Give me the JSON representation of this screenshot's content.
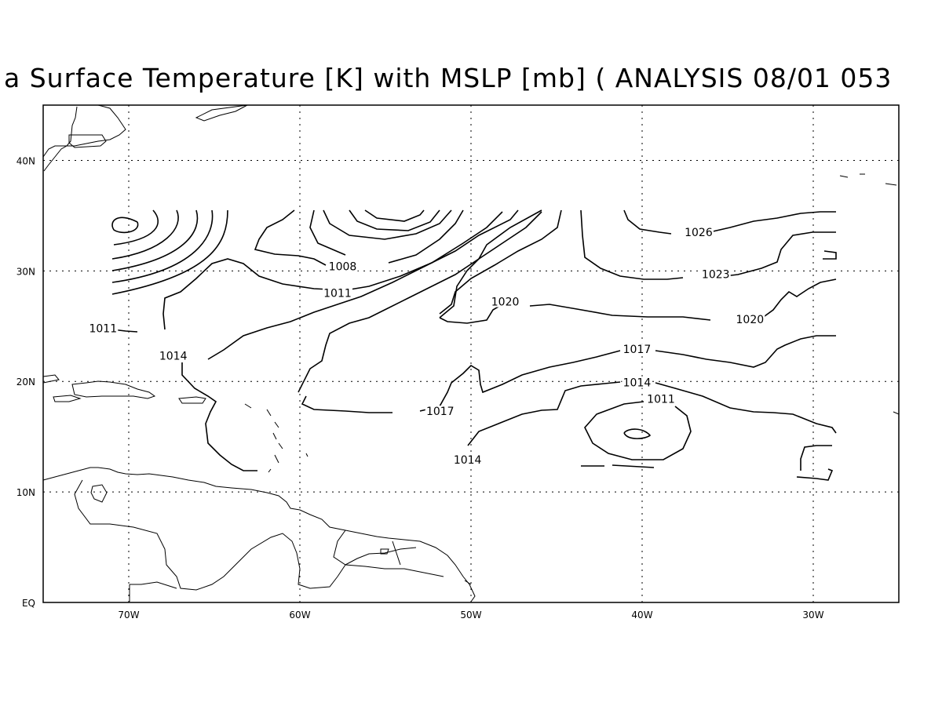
{
  "title": "a Surface Temperature [K] with MSLP [mb] ( ANALYSIS 08/01 053",
  "map": {
    "lon_range": [
      -75,
      -25
    ],
    "lat_range": [
      0,
      45
    ],
    "lat_ticks": [
      {
        "value": 0,
        "label": "EQ"
      },
      {
        "value": 10,
        "label": "10N"
      },
      {
        "value": 20,
        "label": "20N"
      },
      {
        "value": 30,
        "label": "30N"
      },
      {
        "value": 40,
        "label": "40N"
      }
    ],
    "lon_ticks": [
      {
        "value": -70,
        "label": "70W"
      },
      {
        "value": -60,
        "label": "60W"
      },
      {
        "value": -50,
        "label": "50W"
      },
      {
        "value": -40,
        "label": "40W"
      },
      {
        "value": -30,
        "label": "30W"
      }
    ],
    "grid": true
  },
  "isobar_labels": [
    {
      "text": "1008",
      "lon": -57.5,
      "lat": 30.2
    },
    {
      "text": "1011",
      "lon": -57.8,
      "lat": 27.8
    },
    {
      "text": "1011",
      "lon": -71.5,
      "lat": 24.6
    },
    {
      "text": "1014",
      "lon": -67.4,
      "lat": 22.1
    },
    {
      "text": "1017",
      "lon": -51.8,
      "lat": 17.1
    },
    {
      "text": "1014",
      "lon": -50.2,
      "lat": 12.7
    },
    {
      "text": "1020",
      "lon": -48.0,
      "lat": 27.0
    },
    {
      "text": "1023",
      "lon": -35.7,
      "lat": 29.5
    },
    {
      "text": "1026",
      "lon": -36.7,
      "lat": 33.3
    },
    {
      "text": "1020",
      "lon": -33.7,
      "lat": 25.4
    },
    {
      "text": "1017",
      "lon": -40.3,
      "lat": 22.7
    },
    {
      "text": "1014",
      "lon": -40.3,
      "lat": 19.7
    },
    {
      "text": "1011",
      "lon": -38.9,
      "lat": 18.2
    }
  ],
  "colors": {
    "line": "#000000",
    "background": "#ffffff"
  }
}
